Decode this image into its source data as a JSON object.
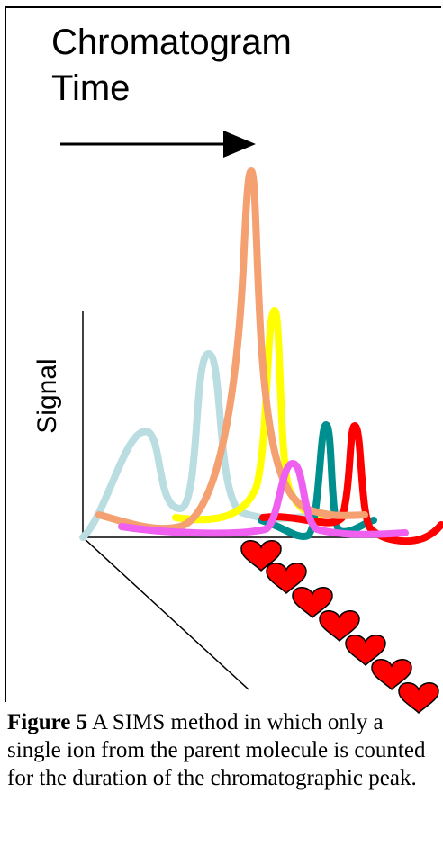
{
  "title": {
    "line1": "Chromatogram",
    "line2": "Time"
  },
  "axis_label": "Signal",
  "caption": {
    "label": "Figure 5",
    "text": "A SIMS method in which only a single ion from the parent molecule is counted for the duration of the chromatographic peak."
  }
}
